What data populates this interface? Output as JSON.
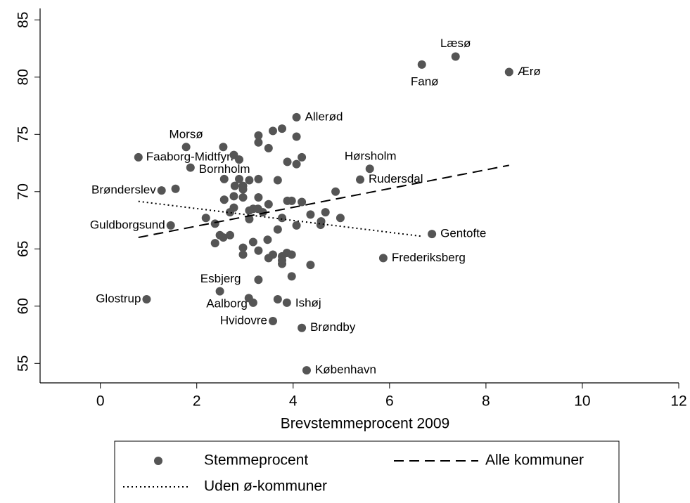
{
  "chart_data": {
    "type": "scatter",
    "xlabel": "Brevstemmeprocent 2009",
    "xlim": [
      -1.25,
      12
    ],
    "ylim": [
      53.3,
      86
    ],
    "xticks": [
      0,
      2,
      4,
      6,
      8,
      10,
      12
    ],
    "yticks": [
      55,
      60,
      65,
      70,
      75,
      80,
      85
    ],
    "grid": false,
    "legend": "bottom",
    "series": [
      {
        "name": "Stemmeprocent",
        "color": "#555555",
        "marker": "circle",
        "x": [
          7.37,
          6.67,
          8.48,
          4.07,
          1.78,
          0.79,
          1.87,
          5.59,
          5.39,
          1.27,
          1.46,
          6.88,
          5.87,
          2.48,
          0.96,
          3.17,
          3.87,
          3.58,
          4.18,
          4.28,
          3.28,
          3.28,
          3.58,
          3.77,
          3.49,
          4.07,
          2.55,
          2.77,
          2.88,
          3.88,
          4.07,
          4.18,
          1.56,
          2.57,
          2.88,
          3.09,
          3.28,
          3.68,
          2.96,
          2.79,
          2.96,
          4.88,
          2.57,
          2.77,
          2.96,
          3.28,
          3.88,
          3.97,
          4.18,
          3.49,
          2.77,
          3.17,
          3.27,
          3.37,
          2.69,
          3.09,
          4.67,
          4.36,
          3.77,
          2.19,
          3.09,
          4.98,
          4.58,
          4.57,
          2.38,
          4.07,
          3.68,
          2.48,
          2.69,
          2.55,
          2.38,
          3.17,
          3.47,
          2.96,
          3.28,
          2.96,
          3.58,
          3.49,
          3.77,
          3.87,
          3.97,
          3.77,
          3.77,
          4.36,
          3.97,
          3.28,
          3.08,
          3.68
        ],
        "values": [
          81.8,
          81.1,
          80.45,
          76.5,
          73.9,
          73.0,
          72.1,
          72.0,
          71.05,
          70.1,
          67.05,
          66.3,
          64.2,
          61.3,
          60.6,
          60.3,
          60.3,
          58.7,
          58.1,
          54.4,
          74.9,
          74.3,
          75.3,
          75.5,
          73.8,
          74.8,
          73.9,
          73.2,
          72.8,
          72.6,
          72.4,
          73.0,
          70.25,
          71.1,
          71.1,
          71.0,
          71.1,
          71.0,
          70.5,
          70.5,
          70.2,
          70.0,
          69.3,
          69.6,
          69.5,
          69.5,
          69.2,
          69.2,
          69.1,
          68.9,
          68.6,
          68.5,
          68.5,
          68.2,
          68.2,
          68.35,
          68.2,
          68.0,
          67.7,
          67.7,
          67.6,
          67.7,
          67.4,
          67.1,
          67.2,
          67.05,
          66.7,
          66.2,
          66.2,
          66.0,
          65.5,
          65.6,
          65.8,
          65.1,
          64.85,
          64.5,
          64.5,
          64.2,
          64.35,
          64.65,
          64.5,
          63.7,
          64.0,
          63.6,
          62.6,
          62.3,
          60.7,
          60.6
        ],
        "labels": [
          "Læsø",
          "Fanø",
          "Ærø",
          "Allerød",
          "Morsø",
          "Faaborg-Midtfyn",
          "Bornholm",
          "Hørsholm",
          "Rudersdal",
          "Brønderslev",
          "Guldborgsund",
          "Gentofte",
          "Frederiksberg",
          "Esbjerg",
          "Glostrup",
          "Aalborg",
          "Ishøj",
          "Hvidovre",
          "Brøndby",
          "København",
          null,
          null,
          null,
          null,
          null,
          null,
          null,
          null,
          null,
          null,
          null,
          null,
          null,
          null,
          null,
          null,
          null,
          null,
          null,
          null,
          null,
          null,
          null,
          null,
          null,
          null,
          null,
          null,
          null,
          null,
          null,
          null,
          null,
          null,
          null,
          null,
          null,
          null,
          null,
          null,
          null,
          null,
          null,
          null,
          null,
          null,
          null,
          null,
          null,
          null,
          null,
          null,
          null,
          null,
          null,
          null,
          null,
          null,
          null,
          null,
          null,
          null,
          null,
          null,
          null,
          null,
          null,
          null
        ]
      },
      {
        "name": "Alle kommuner",
        "color": "#000000",
        "style": "dashed",
        "x": [
          0.79,
          8.48
        ],
        "values": [
          66.0,
          72.3
        ]
      },
      {
        "name": "Uden ø-kommuner",
        "color": "#000000",
        "style": "dotted",
        "x": [
          0.79,
          6.67
        ],
        "values": [
          69.15,
          66.1
        ]
      }
    ]
  }
}
